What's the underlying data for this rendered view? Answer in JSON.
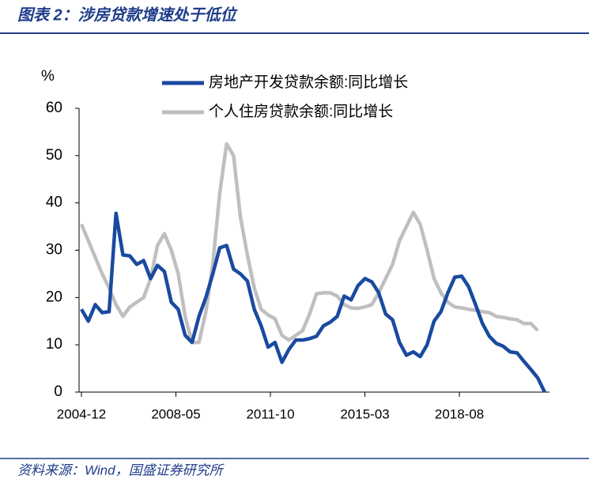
{
  "chart_data": {
    "type": "line",
    "title": "图表 2：涉房贷款增速处于低位",
    "source": "资料来源：Wind，国盛证券研究所",
    "ylabel": "%",
    "categories": [
      "2004-12",
      "2005-03",
      "2005-06",
      "2005-09",
      "2005-12",
      "2006-03",
      "2006-06",
      "2006-09",
      "2006-12",
      "2007-03",
      "2007-06",
      "2007-09",
      "2007-12",
      "2008-03",
      "2008-06",
      "2008-09",
      "2008-12",
      "2009-03",
      "2009-06",
      "2009-09",
      "2009-12",
      "2010-03",
      "2010-06",
      "2010-09",
      "2010-12",
      "2011-03",
      "2011-06",
      "2011-09",
      "2011-12",
      "2012-03",
      "2012-06",
      "2012-09",
      "2012-12",
      "2013-03",
      "2013-06",
      "2013-09",
      "2013-12",
      "2014-03",
      "2014-06",
      "2014-09",
      "2014-12",
      "2015-03",
      "2015-06",
      "2015-09",
      "2015-12",
      "2016-03",
      "2016-06",
      "2016-09",
      "2016-12",
      "2017-03",
      "2017-06",
      "2017-09",
      "2017-12",
      "2018-03",
      "2018-06",
      "2018-09",
      "2018-12",
      "2019-03",
      "2019-06",
      "2019-09",
      "2019-12",
      "2020-03",
      "2020-06",
      "2020-09",
      "2020-12",
      "2021-03",
      "2021-06",
      "2021-09"
    ],
    "xticks": [
      "2004-12",
      "2008-05",
      "2011-10",
      "2015-03",
      "2018-08"
    ],
    "series": [
      {
        "name": "房地产开发贷款余额:同比增长",
        "color": "#1a4aa0",
        "values": [
          17.5,
          15,
          18.5,
          16.8,
          17,
          37.8,
          29,
          28.8,
          27,
          27.8,
          24,
          26.8,
          25.5,
          19,
          17.5,
          12,
          10.5,
          16,
          20,
          25,
          30.5,
          31,
          26,
          25,
          23.5,
          17.5,
          14,
          9.5,
          10.5,
          6.3,
          9,
          11,
          11,
          11.3,
          11.8,
          14,
          14.8,
          16,
          20.3,
          19.5,
          22.5,
          24,
          23.3,
          21,
          16.5,
          15.3,
          10.5,
          7.8,
          8.5,
          7.5,
          10,
          15,
          17,
          21,
          24.3,
          24.5,
          22.3,
          18.5,
          14.5,
          11.8,
          10.3,
          9.7,
          8.5,
          8.3,
          6.5,
          4.8,
          3,
          0
        ]
      },
      {
        "name": "个人住房贷款余额:同比增长",
        "color": "#bfbfbf",
        "values": [
          35.5,
          32,
          28.5,
          25,
          22,
          18.5,
          16,
          18,
          19,
          20,
          24,
          31,
          33.5,
          30,
          25,
          16,
          10.5,
          10.5,
          17,
          27,
          42,
          52.5,
          50,
          37,
          29,
          22,
          17.5,
          16.3,
          15.5,
          12,
          11,
          12,
          13,
          16.5,
          20.8,
          21,
          21,
          20.3,
          18.5,
          17.8,
          17.7,
          18,
          18.5,
          21,
          24,
          27,
          32,
          35,
          38,
          35.5,
          30,
          24,
          21,
          19,
          18,
          17.8,
          17.5,
          17.3,
          17,
          16.8,
          16,
          15.8,
          15.5,
          15.3,
          14.5,
          14.5,
          13,
          null
        ]
      }
    ],
    "ylim": [
      0,
      60
    ],
    "yticks": [
      0,
      10,
      20,
      30,
      40,
      50,
      60
    ],
    "grid": false
  }
}
